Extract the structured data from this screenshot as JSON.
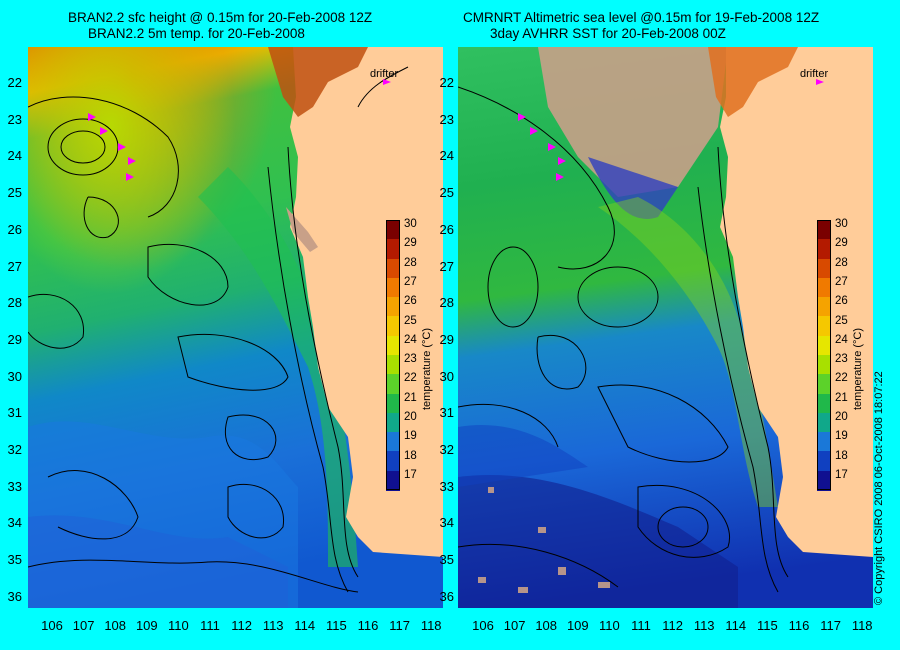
{
  "left_panel": {
    "title_line1": "BRAN2.2 sfc height @ 0.15m for 20-Feb-2008 12Z",
    "title_line2": "BRAN2.2 5m temp. for 20-Feb-2008",
    "drifter_label": "drifter"
  },
  "right_panel": {
    "title_line1": "CMRNRT Altimetric sea level  @0.15m  for 19-Feb-2008 12Z",
    "title_line2": "3day AVHRR SST for 20-Feb-2008 00Z",
    "drifter_label": "drifter"
  },
  "latitudes": [
    "22",
    "23",
    "24",
    "25",
    "26",
    "27",
    "28",
    "29",
    "30",
    "31",
    "32",
    "33",
    "34",
    "35",
    "36"
  ],
  "longitudes": [
    "106",
    "107",
    "108",
    "109",
    "110",
    "111",
    "112",
    "113",
    "114",
    "115",
    "116",
    "117",
    "118"
  ],
  "colorbar": {
    "label": "temperature (°C)",
    "ticks": [
      "30",
      "29",
      "28",
      "27",
      "26",
      "25",
      "24",
      "23",
      "22",
      "21",
      "20",
      "19",
      "18",
      "17"
    ],
    "colors": [
      "#7a0000",
      "#b31a00",
      "#d84a00",
      "#f07a00",
      "#f5a300",
      "#f5c800",
      "#e6e600",
      "#a8e000",
      "#5cd22a",
      "#20b84a",
      "#10a88a",
      "#1a78d8",
      "#1040c0",
      "#101090"
    ]
  },
  "copyright": "© Copyright CSIRO 2008    06-Oct-2008 18:07:22",
  "colors": {
    "background": "#00ffff",
    "land": "#ffcc99",
    "drifter": "#ff00ff"
  }
}
